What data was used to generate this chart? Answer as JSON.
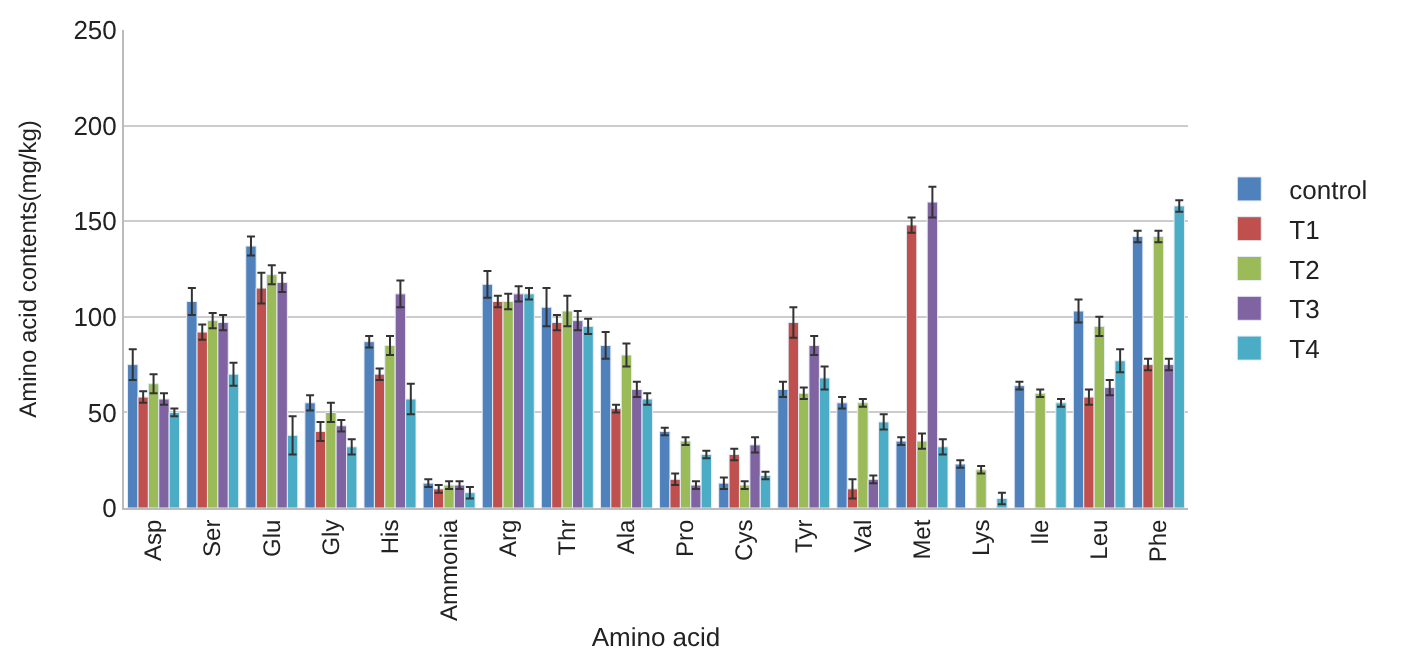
{
  "chart_data": {
    "type": "bar",
    "xlabel": "Amino acid",
    "ylabel": "Amino acid contents(mg/kg)",
    "categories": [
      "Asp",
      "Ser",
      "Glu",
      "Gly",
      "His",
      "Ammonia",
      "Arg",
      "Thr",
      "Ala",
      "Pro",
      "Cys",
      "Tyr",
      "Val",
      "Met",
      "Lys",
      "Ile",
      "Leu",
      "Phe"
    ],
    "series": [
      {
        "name": "control",
        "color": "#4f81bd",
        "values": [
          75,
          108,
          137,
          55,
          87,
          13,
          117,
          105,
          85,
          40,
          13,
          62,
          55,
          35,
          23,
          64,
          103,
          142
        ],
        "errors": [
          8,
          7,
          5,
          4,
          3,
          2,
          7,
          10,
          7,
          2,
          3,
          4,
          3,
          2,
          2,
          2,
          6,
          3
        ]
      },
      {
        "name": "T1",
        "color": "#c0504d",
        "values": [
          58,
          92,
          115,
          40,
          70,
          10,
          108,
          97,
          52,
          15,
          28,
          97,
          10,
          148,
          null,
          null,
          58,
          75
        ],
        "errors": [
          3,
          4,
          8,
          5,
          3,
          2,
          3,
          4,
          2,
          3,
          3,
          8,
          5,
          4,
          null,
          null,
          4,
          3
        ]
      },
      {
        "name": "T2",
        "color": "#9bbb59",
        "values": [
          65,
          98,
          122,
          50,
          85,
          12,
          108,
          103,
          80,
          35,
          12,
          60,
          55,
          35,
          20,
          60,
          95,
          142
        ],
        "errors": [
          5,
          4,
          5,
          5,
          5,
          2,
          4,
          8,
          6,
          2,
          2,
          3,
          2,
          4,
          2,
          2,
          5,
          3
        ]
      },
      {
        "name": "T3",
        "color": "#8064a2",
        "values": [
          57,
          97,
          118,
          43,
          112,
          12,
          112,
          98,
          62,
          12,
          33,
          85,
          15,
          160,
          null,
          null,
          63,
          75
        ],
        "errors": [
          3,
          4,
          5,
          3,
          7,
          2,
          4,
          5,
          4,
          2,
          4,
          5,
          2,
          8,
          null,
          null,
          4,
          3
        ]
      },
      {
        "name": "T4",
        "color": "#4bacc6",
        "values": [
          50,
          70,
          38,
          32,
          57,
          8,
          112,
          95,
          57,
          28,
          17,
          68,
          45,
          32,
          5,
          55,
          77,
          158
        ],
        "errors": [
          2,
          6,
          10,
          4,
          8,
          3,
          3,
          4,
          3,
          2,
          2,
          6,
          4,
          4,
          3,
          2,
          6,
          3
        ]
      }
    ],
    "ylim": [
      0,
      250
    ],
    "yticks": [
      0,
      50,
      100,
      150,
      200,
      250
    ],
    "grid": "y",
    "legend": "right"
  }
}
